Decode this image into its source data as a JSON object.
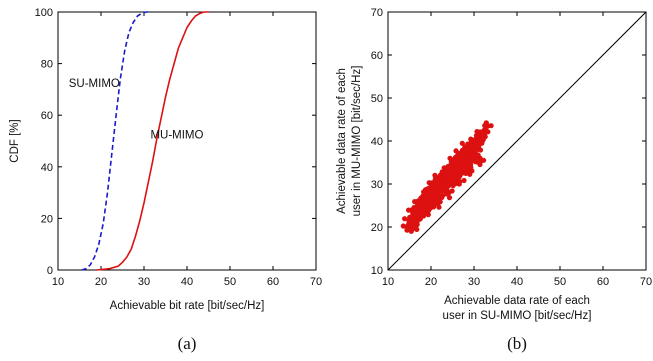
{
  "chart_data": [
    {
      "type": "line",
      "caption": "(a)",
      "xlabel": "Achievable bit rate [bit/sec/Hz]",
      "ylabel": "CDF [%]",
      "xlim": [
        10,
        70
      ],
      "ylim": [
        0,
        100
      ],
      "xticks": [
        "10",
        "20",
        "30",
        "40",
        "50",
        "60",
        "70"
      ],
      "yticks": [
        "0",
        "20",
        "40",
        "60",
        "80",
        "100"
      ],
      "grid": false,
      "annotations": [
        {
          "text": "SU-MIMO",
          "x": 12.5,
          "y": 71
        },
        {
          "text": "MU-MIMO",
          "x": 31.5,
          "y": 51
        }
      ],
      "series": [
        {
          "name": "SU-MIMO",
          "color": "#1a1acc",
          "dash": "dashed",
          "x": [
            15.5,
            16.5,
            17.5,
            18.5,
            19.5,
            20.5,
            21.5,
            22.5,
            23.5,
            24.5,
            25.5,
            26.5,
            27.5,
            28.5,
            29.5,
            30.5,
            31.5
          ],
          "y": [
            0,
            0.5,
            2,
            5,
            10,
            18,
            30,
            45,
            60,
            74,
            85,
            92,
            96,
            98.5,
            99.5,
            100,
            100
          ]
        },
        {
          "name": "MU-MIMO",
          "color": "#dd1111",
          "dash": "solid",
          "x": [
            19,
            22,
            24,
            25,
            26,
            27,
            28,
            29,
            30,
            31,
            32,
            33,
            34,
            35,
            36,
            37,
            38,
            39,
            40,
            41,
            42,
            43,
            44,
            45
          ],
          "y": [
            0,
            0.5,
            1.5,
            3,
            5,
            8,
            13,
            19,
            26,
            34,
            42,
            51,
            59,
            67,
            74,
            80,
            86,
            90,
            94,
            96.5,
            98.5,
            99.5,
            100,
            100
          ]
        }
      ]
    },
    {
      "type": "scatter",
      "caption": "(b)",
      "xlabel": "Achievable data rate of each user in SU-MIMO [bit/sec/Hz]",
      "xlabel_lines": [
        "Achievable data rate of each",
        "user in SU-MIMO [bit/sec/Hz]"
      ],
      "ylabel": "Achievable data rate of each user in MU-MIMO [bit/sec/Hz]",
      "ylabel_lines": [
        "Achievable data rate of each",
        "user in MU-MIMO [bit/sec/Hz]"
      ],
      "xlim": [
        10,
        70
      ],
      "ylim": [
        10,
        70
      ],
      "xticks": [
        "10",
        "20",
        "30",
        "40",
        "50",
        "60",
        "70"
      ],
      "yticks": [
        "10",
        "20",
        "30",
        "40",
        "50",
        "60",
        "70"
      ],
      "grid": false,
      "reference_line": {
        "x": [
          10,
          70
        ],
        "y": [
          10,
          70
        ]
      },
      "series": [
        {
          "color": "#dd1111",
          "x": [
            14.5,
            15,
            15.5,
            16,
            16.5,
            17,
            17.5,
            18,
            18.5,
            19,
            19.5,
            20,
            20.5,
            21,
            21.5,
            22,
            22.5,
            23,
            23.5,
            24,
            24.5,
            25,
            25.5,
            26,
            26.5,
            27,
            27.5,
            28,
            28.5,
            29,
            29.5,
            30,
            30.5,
            31,
            31.5,
            32,
            32.5,
            33,
            15.5,
            17,
            18.5,
            20,
            21.5,
            23,
            24.5,
            26,
            27.5,
            29,
            30.5,
            16,
            17.5,
            19,
            20.5,
            22,
            23.5,
            25,
            26.5,
            28,
            29.5,
            31,
            18,
            19.5,
            21,
            22.5,
            24,
            25.5,
            27,
            28.5,
            30,
            16.5,
            19,
            21.5,
            24,
            26.5,
            29,
            31.5
          ],
          "y": [
            20,
            21.5,
            22,
            23.5,
            23,
            25,
            24.5,
            26,
            25.5,
            27.5,
            27,
            28.5,
            28,
            29.5,
            30,
            30.5,
            31,
            31.5,
            32,
            32.5,
            33,
            33.5,
            34,
            34.5,
            35,
            35.5,
            36,
            36.5,
            37,
            37.5,
            38,
            38.5,
            39.5,
            39,
            40.5,
            41,
            42,
            43.5,
            19.5,
            22,
            24,
            26,
            27.5,
            29.5,
            31,
            32.5,
            33.5,
            35,
            36.5,
            24,
            26,
            28,
            30,
            31.5,
            33.5,
            35.5,
            37,
            38.5,
            40,
            41.5,
            23,
            25,
            26.5,
            28.5,
            30,
            31.5,
            33,
            34.5,
            36,
            21,
            23.5,
            25.5,
            28,
            30.5,
            33,
            35.5
          ]
        }
      ]
    }
  ]
}
